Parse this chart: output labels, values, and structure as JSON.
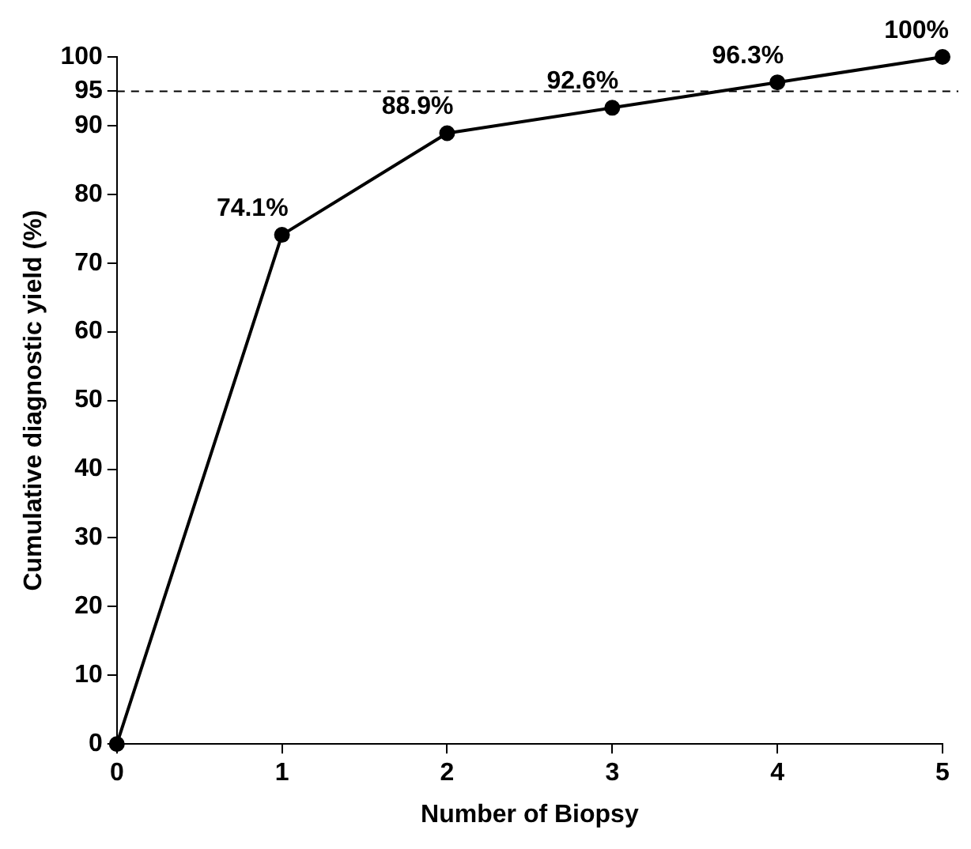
{
  "chart_data": {
    "type": "line",
    "xlabel": "Number of Biopsy",
    "ylabel": "Cumulative diagnostic yield (%)",
    "x": [
      0,
      1,
      2,
      3,
      4,
      5
    ],
    "series": [
      {
        "color": "#000000",
        "values": [
          0,
          74.1,
          88.9,
          92.6,
          96.3,
          100
        ],
        "value_labels": [
          null,
          "74.1%",
          "88.9%",
          "92.6%",
          "96.3%",
          "100%"
        ]
      }
    ],
    "xlim": [
      0,
      5
    ],
    "xticks": [
      0,
      1,
      2,
      3,
      4,
      5
    ],
    "ylim": [
      0,
      100
    ],
    "yticks": [
      0,
      10,
      20,
      30,
      40,
      50,
      60,
      70,
      80,
      90,
      95,
      100
    ],
    "ref_lines": [
      {
        "axis": "y",
        "value": 95,
        "color": "#000000",
        "line_style": "dashed"
      }
    ],
    "marker": "circle",
    "line_style": "solid",
    "grid": false,
    "legend": false
  }
}
